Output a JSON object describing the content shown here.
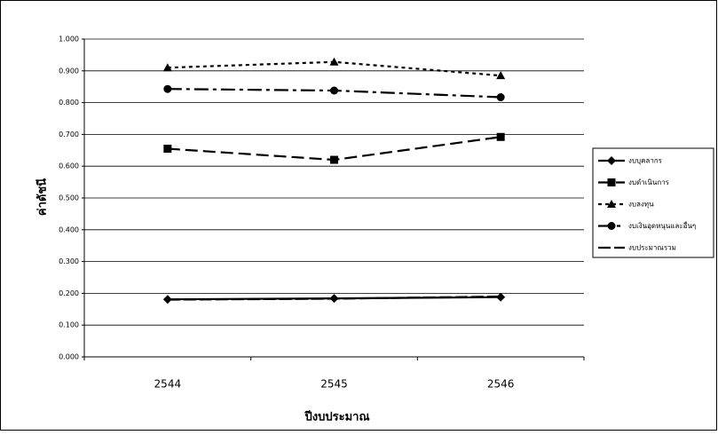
{
  "chart_data": {
    "type": "line",
    "categories": [
      "2544",
      "2545",
      "2546"
    ],
    "x_label": "ปีงบประมาณ",
    "y_label": "ค่าดัชนี",
    "ylim": [
      0,
      1
    ],
    "yticks": [
      {
        "value": 0,
        "label": "0.000"
      },
      {
        "value": 0.1,
        "label": "0.100"
      },
      {
        "value": 0.2,
        "label": "0.200"
      },
      {
        "value": 0.3,
        "label": "0.300"
      },
      {
        "value": 0.4,
        "label": "0.400"
      },
      {
        "value": 0.5,
        "label": "0.500"
      },
      {
        "value": 0.6,
        "label": "0.600"
      },
      {
        "value": 0.7,
        "label": "0.700"
      },
      {
        "value": 0.8,
        "label": "0.800"
      },
      {
        "value": 0.9,
        "label": "0.900"
      },
      {
        "value": 1,
        "label": "1.000"
      }
    ],
    "grid": true,
    "legend": "right",
    "series": [
      {
        "name": "งบบุคลากร",
        "color": "#000000",
        "marker": "diamond",
        "dash": "solid",
        "values": [
          0.181,
          0.184,
          0.188
        ]
      },
      {
        "name": "งบดำเนินการ",
        "color": "#000000",
        "marker": "square",
        "dash": "longdash",
        "values": [
          0.655,
          0.62,
          0.692
        ]
      },
      {
        "name": "งบลงทุน",
        "color": "#000000",
        "marker": "triangle",
        "dash": "dot",
        "values": [
          0.91,
          0.928,
          0.885
        ]
      },
      {
        "name": "งบเงินอุดหนุนและอื่นๆ",
        "color": "#000000",
        "marker": "circle",
        "dash": "dashdot",
        "values": [
          0.843,
          0.838,
          0.817
        ]
      },
      {
        "name": "งบประมาณรวม",
        "color": "#000000",
        "marker": "none",
        "dash": "dash",
        "values": [
          0.18,
          0.183,
          0.19
        ]
      }
    ]
  }
}
